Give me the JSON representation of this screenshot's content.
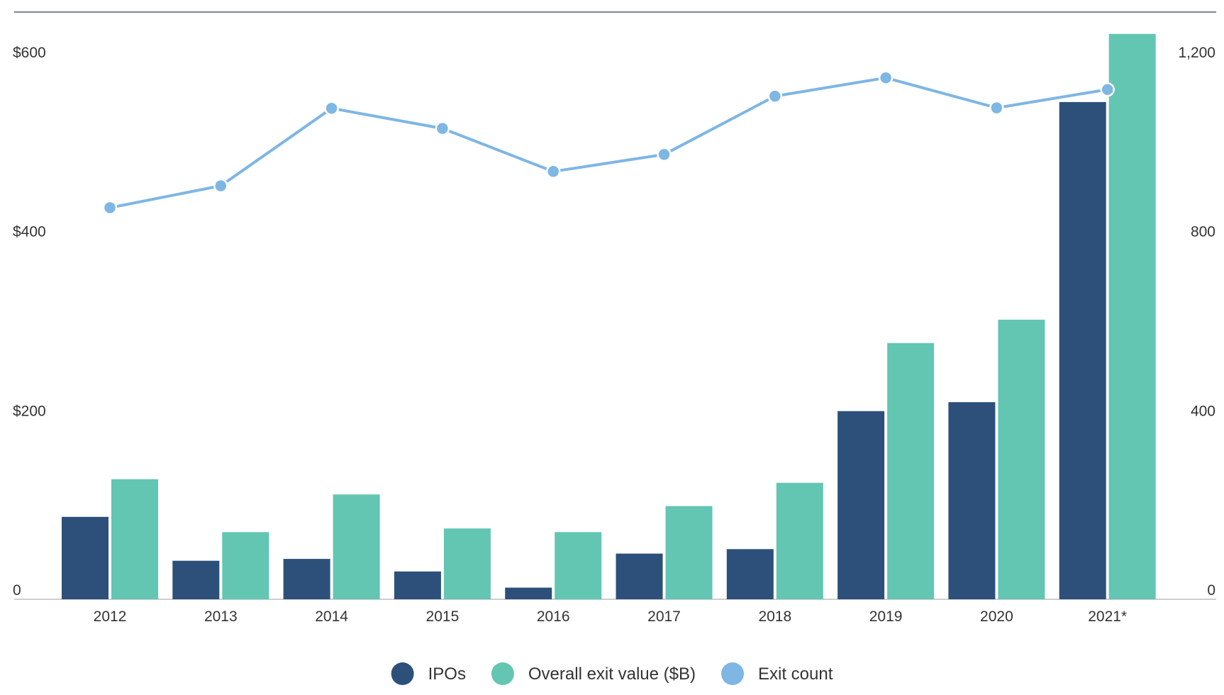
{
  "chart_data": {
    "type": "bar",
    "categories": [
      "2012",
      "2013",
      "2014",
      "2015",
      "2016",
      "2017",
      "2018",
      "2019",
      "2020",
      "2021*"
    ],
    "series": [
      {
        "name": "IPOs",
        "type": "bar",
        "axis": "left",
        "color": "#2c507a",
        "values": [
          92,
          43,
          45,
          31,
          13,
          51,
          56,
          210,
          220,
          555
        ]
      },
      {
        "name": "Overall exit value ($B)",
        "type": "bar",
        "axis": "left",
        "color": "#62c6b3",
        "values": [
          134,
          75,
          117,
          79,
          75,
          104,
          130,
          286,
          312,
          631
        ]
      },
      {
        "name": "Exit count",
        "type": "line",
        "axis": "right",
        "color": "#7eb6e4",
        "values": [
          874,
          923,
          1096,
          1051,
          955,
          993,
          1123,
          1164,
          1097,
          1138
        ]
      }
    ],
    "y_left": {
      "ylim": [
        0,
        667
      ],
      "ticks": [
        0,
        200,
        400,
        600
      ],
      "tick_labels": [
        "0",
        "$200",
        "$400",
        "$600"
      ]
    },
    "y_right": {
      "ylim": [
        0,
        1334
      ],
      "ticks": [
        0,
        400,
        800,
        1200
      ],
      "tick_labels": [
        "0",
        "400",
        "800",
        "1,200"
      ]
    },
    "grid": false,
    "legend_placement": "bottom-center",
    "title": "",
    "xlabel": "",
    "ylabel": ""
  }
}
